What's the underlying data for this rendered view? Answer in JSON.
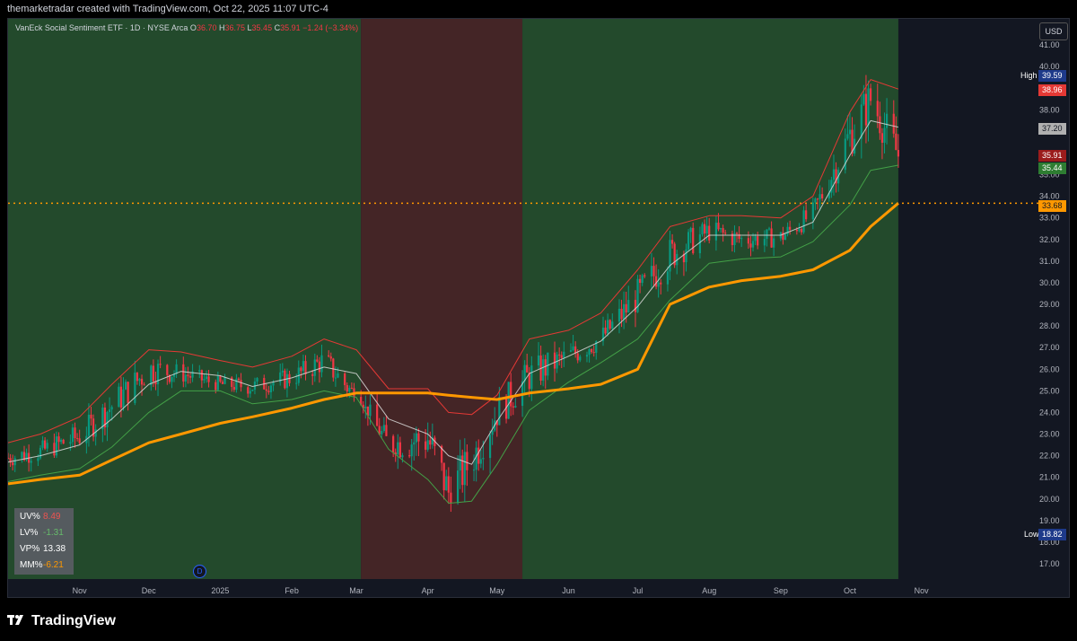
{
  "header": {
    "attribution": "themarketradar created with TradingView.com, Oct 22, 2025 11:07 UTC-4"
  },
  "legend": {
    "symbol": "VanEck Social Sentiment ETF · 1D · NYSE Arca",
    "o_label": "O",
    "o_value": "36.70",
    "h_label": "H",
    "h_value": "36.75",
    "l_label": "L",
    "l_value": "35.45",
    "c_label": "C",
    "c_value": "35.91",
    "change": "−1.24 (−3.34%)"
  },
  "currency": "USD",
  "colors": {
    "bull": "#089981",
    "bear": "#f23645",
    "bg_green": "#234a2c",
    "bg_red": "#442526",
    "sma": "#ff9800",
    "upper_band": "#e53935",
    "lower_band": "#43a047",
    "mid_band": "#d9d9d9"
  },
  "price_labels": {
    "high_label": "High",
    "high_value": "39.59",
    "upper_band": "38.96",
    "mid_band": "37.20",
    "last_price": "35.91",
    "lower_band": "35.44",
    "sma": "33.68",
    "low_label": "Low",
    "low_value": "18.82"
  },
  "stats_panel": {
    "uv_label": "UV%",
    "uv_value": "8.49",
    "lv_label": "LV%",
    "lv_value": "-1.31",
    "vp_label": "VP%",
    "vp_value": "13.38",
    "mm_label": "MM%",
    "mm_value": "-6.21"
  },
  "event_marker": "D",
  "footer": {
    "brand": "TradingView"
  },
  "chart_data": {
    "type": "line",
    "title": "VanEck Social Sentiment ETF · 1D · NYSE Arca",
    "xlabel": "",
    "ylabel": "",
    "ylim": [
      17.0,
      41.0
    ],
    "x_ticks": [
      "Nov",
      "Dec",
      "2025",
      "Feb",
      "Mar",
      "Apr",
      "May",
      "Jun",
      "Jul",
      "Aug",
      "Sep",
      "Oct",
      "Nov"
    ],
    "y_ticks": [
      "17.00",
      "18.00",
      "19.00",
      "20.00",
      "21.00",
      "22.00",
      "23.00",
      "24.00",
      "25.00",
      "26.00",
      "27.00",
      "28.00",
      "29.00",
      "30.00",
      "31.00",
      "32.00",
      "33.00",
      "34.00",
      "35.00",
      "36.00",
      "37.00",
      "38.00",
      "39.00",
      "40.00",
      "41.00"
    ],
    "regimes": [
      {
        "state": "bullish",
        "start": "2024-10-01",
        "end": "2025-03-03"
      },
      {
        "state": "bearish",
        "start": "2025-03-03",
        "end": "2025-05-12"
      },
      {
        "state": "bullish",
        "start": "2025-05-12",
        "end": "2025-10-22"
      }
    ],
    "horizontal_line": 33.68,
    "x": [
      "2024-10-01",
      "2024-10-15",
      "2024-11-01",
      "2024-11-15",
      "2024-12-01",
      "2024-12-15",
      "2025-01-01",
      "2025-01-15",
      "2025-02-01",
      "2025-02-15",
      "2025-03-01",
      "2025-03-15",
      "2025-04-01",
      "2025-04-10",
      "2025-04-20",
      "2025-05-01",
      "2025-05-15",
      "2025-06-01",
      "2025-06-15",
      "2025-07-01",
      "2025-07-15",
      "2025-08-01",
      "2025-08-15",
      "2025-09-01",
      "2025-09-15",
      "2025-10-01",
      "2025-10-10",
      "2025-10-22"
    ],
    "series": [
      {
        "name": "",
        "role": "close",
        "values": [
          21.9,
          22.2,
          22.9,
          24.3,
          26.0,
          25.8,
          25.3,
          25.2,
          25.6,
          26.4,
          24.7,
          22.5,
          22.8,
          20.3,
          21.8,
          24.0,
          25.7,
          26.6,
          27.4,
          29.4,
          31.3,
          32.4,
          32.0,
          32.1,
          33.2,
          36.8,
          38.5,
          35.91
        ]
      },
      {
        "name": "",
        "role": "upper",
        "values": [
          22.6,
          23.0,
          23.8,
          25.3,
          26.9,
          26.8,
          26.4,
          26.1,
          26.6,
          27.4,
          26.9,
          25.1,
          25.1,
          24.0,
          23.9,
          24.8,
          27.4,
          27.8,
          28.6,
          30.6,
          32.6,
          33.1,
          33.1,
          33.0,
          34.0,
          37.9,
          39.4,
          38.96
        ]
      },
      {
        "name": "",
        "role": "mid",
        "values": [
          21.7,
          22.0,
          22.5,
          23.7,
          25.3,
          25.9,
          25.7,
          25.2,
          25.6,
          26.1,
          25.8,
          23.7,
          23.0,
          22.0,
          21.6,
          23.6,
          25.8,
          26.6,
          27.3,
          28.9,
          30.8,
          32.2,
          32.2,
          32.2,
          32.8,
          35.9,
          37.5,
          37.2
        ]
      },
      {
        "name": "",
        "role": "lower",
        "values": [
          20.8,
          21.1,
          21.4,
          22.4,
          24.0,
          25.0,
          25.0,
          24.4,
          24.6,
          25.0,
          24.7,
          22.3,
          20.9,
          19.8,
          19.9,
          21.6,
          24.1,
          25.4,
          26.3,
          27.4,
          29.2,
          30.9,
          31.1,
          31.2,
          31.9,
          33.6,
          35.2,
          35.44
        ]
      },
      {
        "name": "",
        "role": "sma",
        "values": [
          20.7,
          20.9,
          21.1,
          21.8,
          22.6,
          23.0,
          23.5,
          23.8,
          24.2,
          24.6,
          24.9,
          24.9,
          24.9,
          24.8,
          24.7,
          24.6,
          24.9,
          25.1,
          25.3,
          26.0,
          29.0,
          29.8,
          30.1,
          30.3,
          30.6,
          31.5,
          32.6,
          33.68
        ]
      }
    ],
    "high": 39.59,
    "low": 18.82
  }
}
